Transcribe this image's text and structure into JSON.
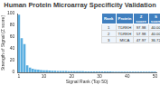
{
  "chart_data": {
    "type": "bar",
    "title": "Human Protein Microarray Specificity Validation",
    "x_label": "Signal Rank (Top 50)",
    "y_label": "Strength of Signal (Z score)",
    "categories": [
      "1",
      null,
      null,
      null,
      null,
      null,
      null,
      null,
      null,
      "10",
      null,
      null,
      null,
      null,
      null,
      null,
      null,
      null,
      null,
      "20",
      null,
      null,
      null,
      null,
      null,
      null,
      null,
      null,
      null,
      "30",
      null,
      null,
      null,
      null,
      null,
      null,
      null,
      null,
      null,
      "40",
      null,
      null,
      null,
      null,
      null,
      null,
      null,
      null,
      null,
      "50"
    ],
    "values": [
      97.98,
      57.98,
      47.97,
      12,
      8,
      6,
      5,
      4.5,
      4,
      3.6,
      3.3,
      3,
      2.8,
      2.6,
      2.5,
      2.4,
      2.3,
      2.2,
      2.1,
      2,
      1.9,
      1.9,
      1.8,
      1.8,
      1.7,
      1.7,
      1.6,
      1.6,
      1.5,
      1.5,
      1.5,
      1.4,
      1.4,
      1.4,
      1.3,
      1.3,
      1.3,
      1.2,
      1.2,
      1.2,
      1.1,
      1.1,
      1.1,
      1.1,
      1,
      1,
      1,
      1,
      1,
      1
    ],
    "color": "#5aaee0",
    "ylim": [
      0,
      100
    ],
    "yticks": [
      0,
      20,
      40,
      60,
      80,
      100
    ],
    "grid": false
  },
  "table": {
    "header": [
      "Rank",
      "Protein",
      "Z score",
      "S score"
    ],
    "rows": [
      [
        "1",
        "TDRKH",
        "97.98",
        "40.00"
      ],
      [
        "2",
        "TDRKH",
        "57.98",
        "40.00"
      ],
      [
        "3",
        "MICA",
        "47.97",
        "36.72"
      ]
    ]
  }
}
